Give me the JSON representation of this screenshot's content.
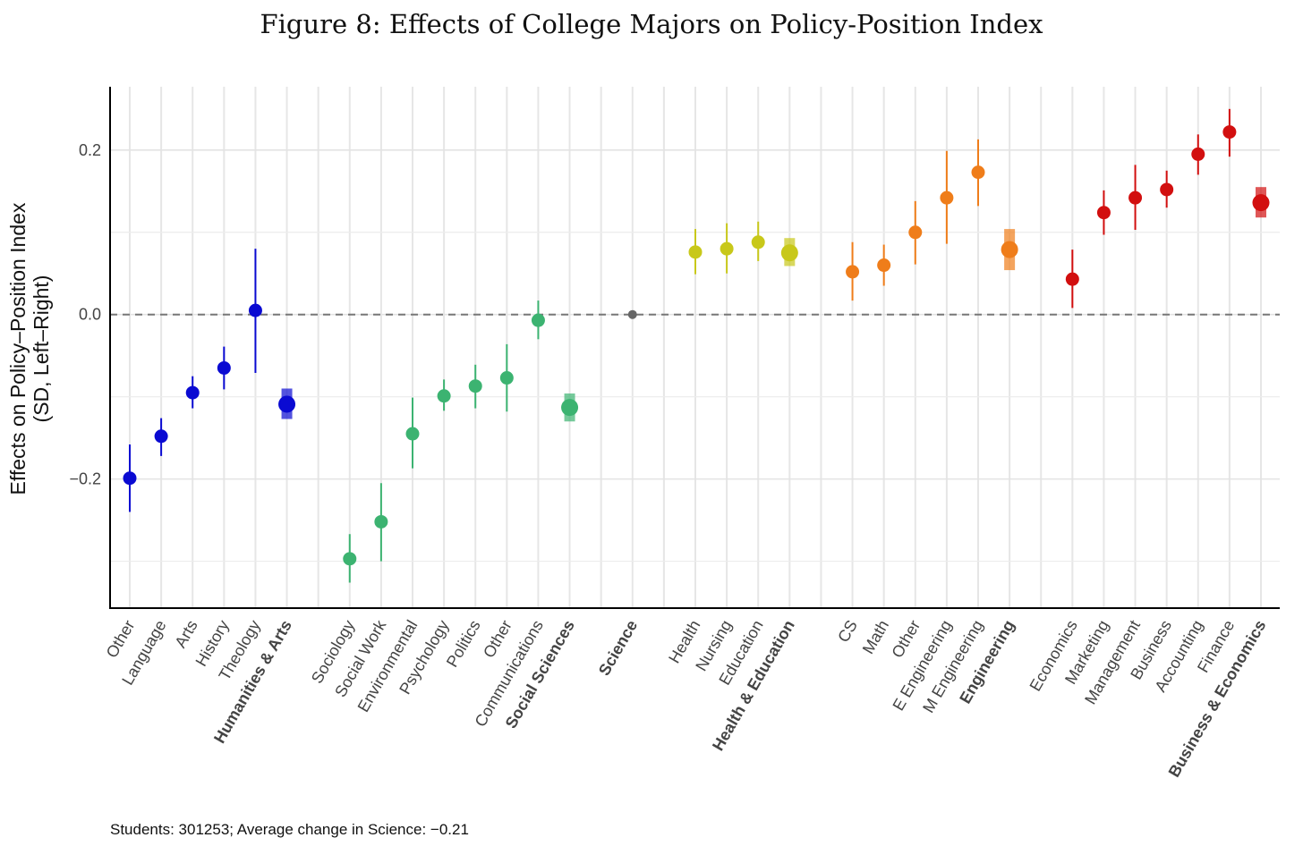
{
  "chart_data": {
    "type": "scatter",
    "title": "Figure 8: Effects of College Majors on Policy-Position Index",
    "ylabel_line1": "Effects on Policy–Position Index",
    "ylabel_line2": "(SD, Left–Right)",
    "xlabel": "",
    "ylim": [
      -0.357,
      0.277
    ],
    "yticks": [
      -0.2,
      0.0,
      0.2
    ],
    "ytick_labels": [
      "−0.2",
      "0.0",
      "0.2"
    ],
    "minor_gridlines": [
      -0.3,
      -0.1,
      0.1
    ],
    "reference_line": 0.0,
    "grid": true,
    "footnote": "Students: 301253; Average change in Science: −0.21",
    "groups": [
      {
        "name": "Humanities & Arts",
        "color": "#0a0ad2",
        "items": [
          {
            "label": "Other",
            "value": -0.199,
            "low": -0.24,
            "high": -0.158
          },
          {
            "label": "Language",
            "value": -0.148,
            "low": -0.172,
            "high": -0.126
          },
          {
            "label": "Arts",
            "value": -0.095,
            "low": -0.114,
            "high": -0.075
          },
          {
            "label": "History",
            "value": -0.065,
            "low": -0.091,
            "high": -0.039
          },
          {
            "label": "Theology",
            "value": 0.005,
            "low": -0.071,
            "high": 0.08
          },
          {
            "label": "Humanities & Arts",
            "value": -0.109,
            "low": -0.127,
            "high": -0.09,
            "aggregate": true
          }
        ]
      },
      {
        "name": "Social Sciences",
        "color": "#3cb371",
        "items": [
          {
            "label": "Sociology",
            "value": -0.297,
            "low": -0.326,
            "high": -0.267
          },
          {
            "label": "Social Work",
            "value": -0.252,
            "low": -0.3,
            "high": -0.205
          },
          {
            "label": "Environmental",
            "value": -0.145,
            "low": -0.187,
            "high": -0.101
          },
          {
            "label": "Psychology",
            "value": -0.099,
            "low": -0.117,
            "high": -0.079
          },
          {
            "label": "Politics",
            "value": -0.087,
            "low": -0.114,
            "high": -0.061
          },
          {
            "label": "Other",
            "value": -0.077,
            "low": -0.118,
            "high": -0.036
          },
          {
            "label": "Communications",
            "value": -0.007,
            "low": -0.03,
            "high": 0.017
          },
          {
            "label": "Social Sciences",
            "value": -0.113,
            "low": -0.13,
            "high": -0.096,
            "aggregate": true
          }
        ]
      },
      {
        "name": "Science",
        "color": "#666666",
        "items": [
          {
            "label": "Science",
            "value": 0.0,
            "low": 0.0,
            "high": 0.0,
            "aggregate": true,
            "reference": true
          }
        ]
      },
      {
        "name": "Health & Education",
        "color": "#c8c81a",
        "items": [
          {
            "label": "Health",
            "value": 0.076,
            "low": 0.049,
            "high": 0.104
          },
          {
            "label": "Nursing",
            "value": 0.08,
            "low": 0.05,
            "high": 0.111
          },
          {
            "label": "Education",
            "value": 0.088,
            "low": 0.065,
            "high": 0.113
          },
          {
            "label": "Health & Education",
            "value": 0.075,
            "low": 0.059,
            "high": 0.093,
            "aggregate": true
          }
        ]
      },
      {
        "name": "Engineering",
        "color": "#ef7d1a",
        "items": [
          {
            "label": "CS",
            "value": 0.052,
            "low": 0.017,
            "high": 0.088
          },
          {
            "label": "Math",
            "value": 0.06,
            "low": 0.035,
            "high": 0.085
          },
          {
            "label": "Other",
            "value": 0.1,
            "low": 0.061,
            "high": 0.138
          },
          {
            "label": "E Engineering",
            "value": 0.142,
            "low": 0.086,
            "high": 0.199
          },
          {
            "label": "M Engineering",
            "value": 0.173,
            "low": 0.132,
            "high": 0.213
          },
          {
            "label": "Engineering",
            "value": 0.079,
            "low": 0.054,
            "high": 0.104,
            "aggregate": true
          }
        ]
      },
      {
        "name": "Business & Economics",
        "color": "#d20f0f",
        "items": [
          {
            "label": "Economics",
            "value": 0.043,
            "low": 0.008,
            "high": 0.079
          },
          {
            "label": "Marketing",
            "value": 0.124,
            "low": 0.097,
            "high": 0.151
          },
          {
            "label": "Management",
            "value": 0.142,
            "low": 0.103,
            "high": 0.182
          },
          {
            "label": "Business",
            "value": 0.152,
            "low": 0.13,
            "high": 0.175
          },
          {
            "label": "Accounting",
            "value": 0.195,
            "low": 0.17,
            "high": 0.219
          },
          {
            "label": "Finance",
            "value": 0.222,
            "low": 0.192,
            "high": 0.25
          },
          {
            "label": "Business & Economics",
            "value": 0.136,
            "low": 0.118,
            "high": 0.155,
            "aggregate": true
          }
        ]
      }
    ]
  }
}
